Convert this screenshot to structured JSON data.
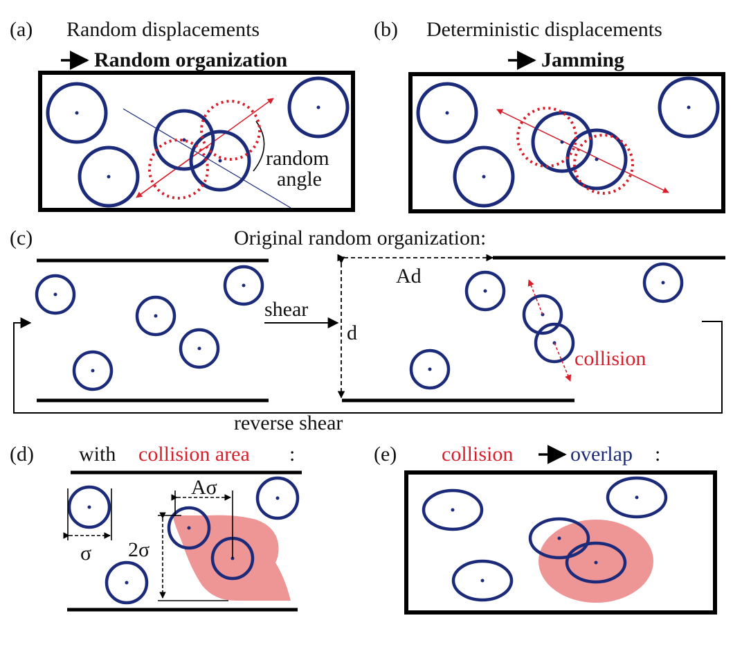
{
  "panels": {
    "a": {
      "letter": "(a)",
      "title_line1": "Random displacements",
      "title_line2": "Random organization",
      "annotation_line1": "random",
      "annotation_line2": "angle"
    },
    "b": {
      "letter": "(b)",
      "title_line1": "Deterministic displacements",
      "title_line2": "Jamming"
    },
    "c": {
      "letter": "(c)",
      "title": "Original random organization:",
      "shear_label": "shear",
      "reverse_shear_label": "reverse shear",
      "amplitude_label": "Ad",
      "gap_label": "d",
      "collision_label": "collision"
    },
    "d": {
      "letter": "(d)",
      "title_prefix": "with",
      "title_highlight": "collision area",
      "title_suffix": ":",
      "sigma_label": "σ",
      "two_sigma_label": "2σ",
      "a_sigma_label": "Aσ"
    },
    "e": {
      "letter": "(e)",
      "title_collision": "collision",
      "title_overlap": "overlap",
      "title_suffix": ":"
    }
  },
  "colors": {
    "particle": "#1c2a7a",
    "collision": "#d81e2a",
    "collision_area": "#ee9596",
    "frame": "#000000"
  }
}
